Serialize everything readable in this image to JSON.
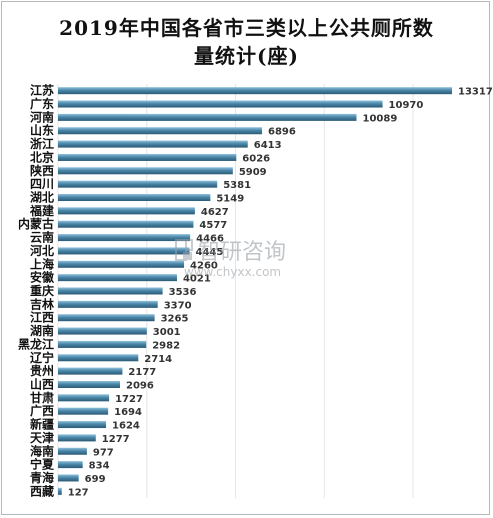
{
  "chart_data": {
    "type": "bar",
    "orientation": "horizontal",
    "title": "2019年中国各省市三类以上公共厕所数量统计(座)",
    "title_lines": [
      "2019年中国各省市三类以上公共厕所数",
      "量统计(座)"
    ],
    "categories": [
      "江苏",
      "广东",
      "河南",
      "山东",
      "浙江",
      "北京",
      "陕西",
      "四川",
      "湖北",
      "福建",
      "内蒙古",
      "云南",
      "河北",
      "上海",
      "安徽",
      "重庆",
      "吉林",
      "江西",
      "湖南",
      "黑龙江",
      "辽宁",
      "贵州",
      "山西",
      "甘肃",
      "广西",
      "新疆",
      "天津",
      "海南",
      "宁夏",
      "青海",
      "西藏"
    ],
    "values": [
      13317,
      10970,
      10089,
      6896,
      6413,
      6026,
      5909,
      5381,
      5149,
      4627,
      4577,
      4466,
      4445,
      4260,
      4021,
      3536,
      3370,
      3265,
      3001,
      2982,
      2714,
      2177,
      2096,
      1727,
      1694,
      1624,
      1277,
      977,
      834,
      699,
      127
    ],
    "xlim": [
      0,
      13317
    ],
    "grid": true,
    "legend": "none",
    "bar_color": "#4a86a8"
  },
  "watermark": {
    "brand": "智研咨询",
    "url": "www.chyxx.com"
  }
}
